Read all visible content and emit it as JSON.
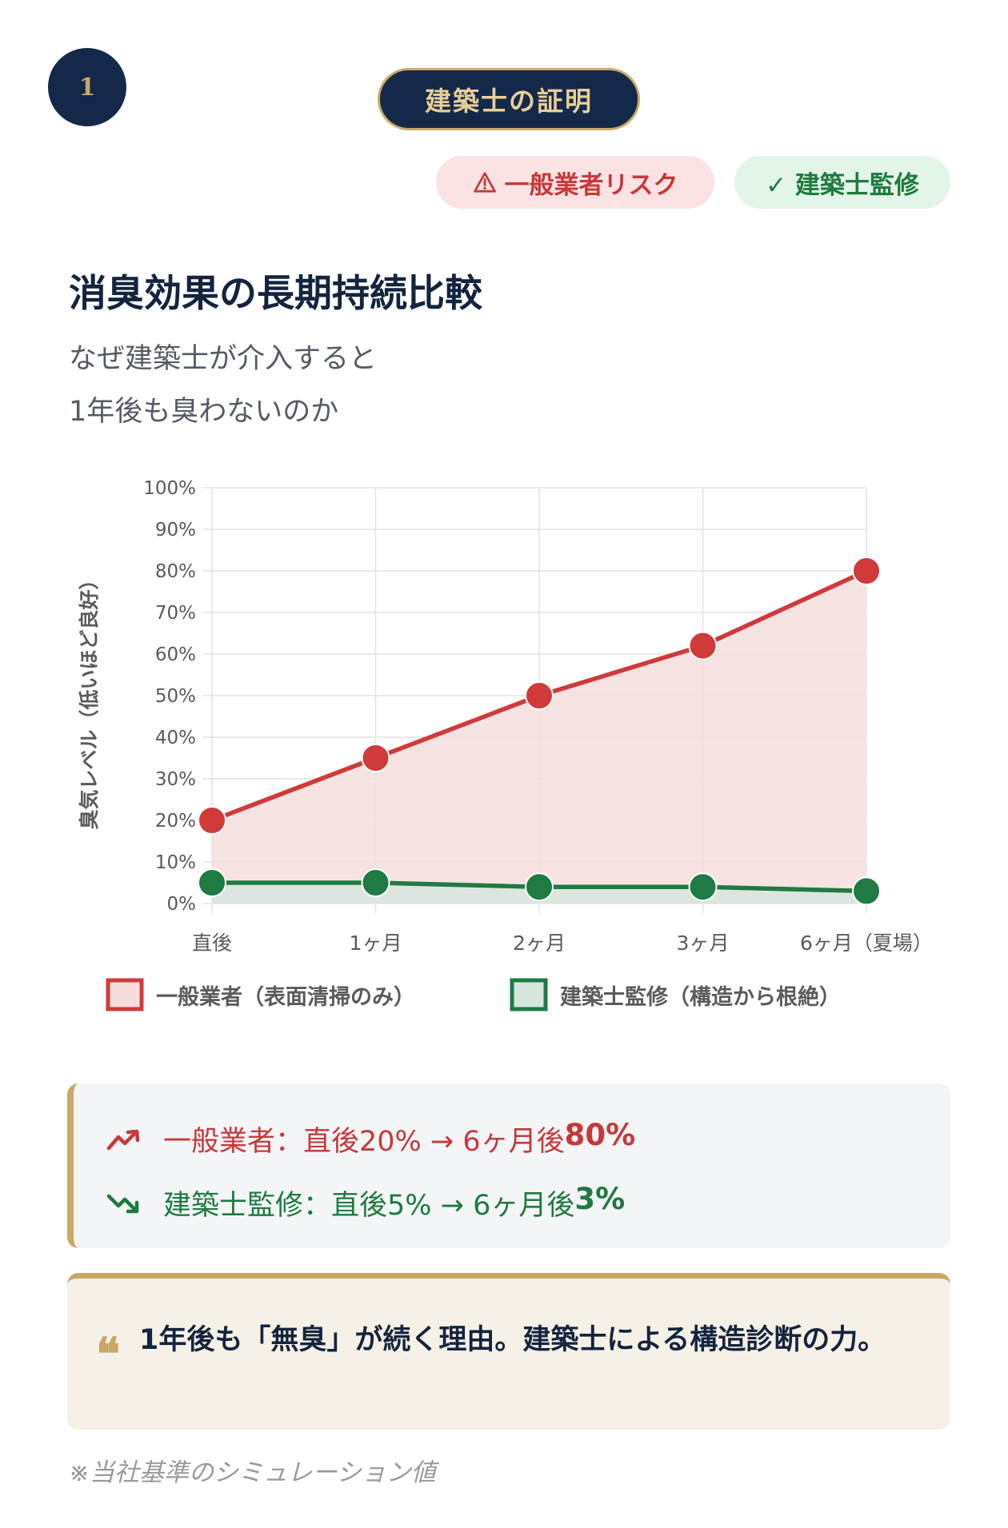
{
  "step": {
    "number": "1"
  },
  "proof_label": "建築士の証明",
  "tags": {
    "risk": {
      "label": "一般業者リスク",
      "icon": "warning-icon",
      "color": "#c8383a"
    },
    "ok": {
      "label": "✓ 建築士監修",
      "color": "#1e7a3f"
    }
  },
  "heading": {
    "title": "消臭効果の長期持続比較",
    "subtitle_line1": "なぜ建築士が介入すると",
    "subtitle_line2": "1年後も臭わないのか"
  },
  "chart_data": {
    "type": "line",
    "categories": [
      "直後",
      "1ヶ月",
      "2ヶ月",
      "3ヶ月",
      "6ヶ月（夏場）"
    ],
    "ylabel": "臭気レベル（低いほど良好）",
    "ylim": [
      0,
      100
    ],
    "yticks": [
      "100%",
      "90%",
      "80%",
      "70%",
      "60%",
      "50%",
      "40%",
      "30%",
      "20%",
      "10%",
      "0%"
    ],
    "grid": true,
    "legend_position": "bottom",
    "series": [
      {
        "name": "一般業者（表面清掃のみ）",
        "values": [
          20,
          35,
          50,
          62,
          80
        ],
        "color": "#d03a3a",
        "fill": "#f7dede"
      },
      {
        "name": "建築士監修（構造から根絶）",
        "values": [
          5,
          5,
          4,
          4,
          3
        ],
        "color": "#1f7a44",
        "fill": "#d6e6dc"
      }
    ]
  },
  "summary": {
    "line1_prefix": "一般業者：直後20% → 6ヶ月後",
    "line1_value": "80%",
    "line1_icon": "trending-up-icon",
    "line2_prefix": "建築士監修：直後5% → 6ヶ月後",
    "line2_value": "3%",
    "line2_icon": "trending-down-icon"
  },
  "quote": {
    "icon": "quote-icon",
    "text": "1年後も「無臭」が続く理由。建築士による構造診断の力。"
  },
  "note": "※当社基準のシミュレーション値"
}
